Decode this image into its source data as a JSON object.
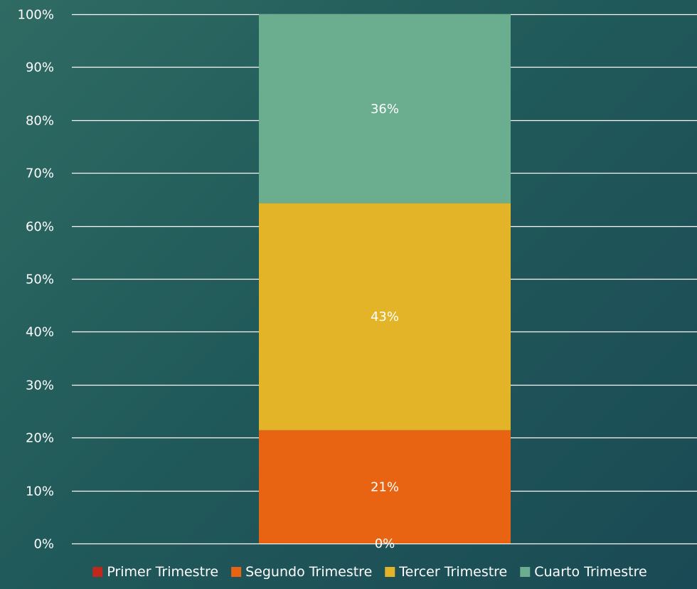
{
  "chart_data": {
    "type": "bar",
    "stacked": true,
    "normalized": true,
    "categories": [
      ""
    ],
    "series": [
      {
        "name": "Primer Trimestre",
        "values": [
          0
        ],
        "label": "0%",
        "color": "#c0281e"
      },
      {
        "name": "Segundo Trimestre",
        "values": [
          21.4
        ],
        "label": "21%",
        "color": "#e86413"
      },
      {
        "name": "Tercer Trimestre",
        "values": [
          42.9
        ],
        "label": "43%",
        "color": "#e3b427"
      },
      {
        "name": "Cuarto Trimestre",
        "values": [
          35.7
        ],
        "label": "36%",
        "color": "#6aad8f"
      }
    ],
    "ylim": [
      0,
      100
    ],
    "yticks": [
      "0%",
      "10%",
      "20%",
      "30%",
      "40%",
      "50%",
      "60%",
      "70%",
      "80%",
      "90%",
      "100%"
    ],
    "grid": true,
    "legend_position": "bottom",
    "title": "",
    "xlabel": "",
    "ylabel": ""
  },
  "colors": {
    "gridline": "#ffffff",
    "text": "#ffffff"
  }
}
